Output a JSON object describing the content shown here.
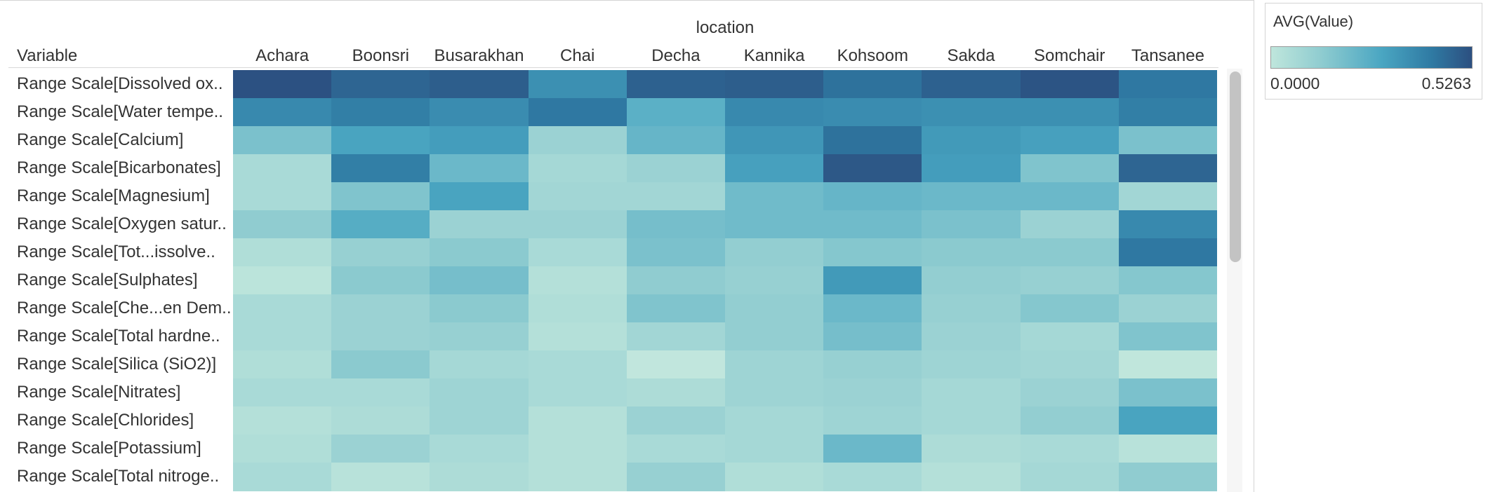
{
  "chart_data": {
    "type": "heatmap",
    "title": "",
    "column_group_title": "location",
    "row_header_title": "Variable",
    "x": [
      "Achara",
      "Boonsri",
      "Busarakhan",
      "Chai",
      "Decha",
      "Kannika",
      "Kohsoom",
      "Sakda",
      "Somchair",
      "Tansanee"
    ],
    "y": [
      "Range Scale[Dissolved ox..",
      "Range Scale[Water tempe..",
      "Range Scale[Calcium]",
      "Range Scale[Bicarbonates]",
      "Range Scale[Magnesium]",
      "Range Scale[Oxygen satur..",
      "Range Scale[Tot...issolve..",
      "Range Scale[Sulphates]",
      "Range Scale[Che...en Dem..",
      "Range Scale[Total hardne..",
      "Range Scale[Silica (SiO2)]",
      "Range Scale[Nitrates]",
      "Range Scale[Chlorides]",
      "Range Scale[Potassium]",
      "Range Scale[Total nitroge.."
    ],
    "values": [
      [
        0.52,
        0.46,
        0.48,
        0.33,
        0.47,
        0.48,
        0.42,
        0.47,
        0.51,
        0.4
      ],
      [
        0.35,
        0.38,
        0.34,
        0.4,
        0.23,
        0.35,
        0.34,
        0.33,
        0.33,
        0.38
      ],
      [
        0.17,
        0.27,
        0.29,
        0.1,
        0.21,
        0.31,
        0.42,
        0.3,
        0.28,
        0.17
      ],
      [
        0.06,
        0.38,
        0.2,
        0.07,
        0.1,
        0.28,
        0.5,
        0.29,
        0.16,
        0.46
      ],
      [
        0.06,
        0.16,
        0.27,
        0.08,
        0.08,
        0.19,
        0.21,
        0.2,
        0.2,
        0.08
      ],
      [
        0.13,
        0.24,
        0.1,
        0.1,
        0.18,
        0.19,
        0.19,
        0.17,
        0.1,
        0.35
      ],
      [
        0.04,
        0.11,
        0.14,
        0.06,
        0.17,
        0.12,
        0.15,
        0.14,
        0.14,
        0.4
      ],
      [
        0.01,
        0.14,
        0.18,
        0.03,
        0.13,
        0.11,
        0.3,
        0.12,
        0.11,
        0.15
      ],
      [
        0.06,
        0.1,
        0.14,
        0.04,
        0.16,
        0.12,
        0.2,
        0.11,
        0.15,
        0.1
      ],
      [
        0.06,
        0.1,
        0.11,
        0.03,
        0.08,
        0.12,
        0.18,
        0.1,
        0.07,
        0.16
      ],
      [
        0.04,
        0.14,
        0.07,
        0.06,
        -0.02,
        0.09,
        0.11,
        0.09,
        0.08,
        -0.01
      ],
      [
        0.06,
        0.06,
        0.09,
        0.06,
        0.05,
        0.09,
        0.1,
        0.07,
        0.1,
        0.17
      ],
      [
        0.03,
        0.05,
        0.09,
        0.03,
        0.1,
        0.07,
        0.09,
        0.07,
        0.12,
        0.27
      ],
      [
        0.04,
        0.1,
        0.06,
        0.03,
        0.06,
        0.07,
        0.2,
        0.05,
        0.06,
        0.02
      ],
      [
        0.06,
        0.02,
        0.05,
        0.03,
        0.11,
        0.04,
        0.06,
        0.03,
        0.07,
        0.13
      ]
    ],
    "color_scale": {
      "title": "AVG(Value)",
      "min_label": "0.0000",
      "max_label": "0.5263",
      "min": 0.0,
      "max": 0.5263,
      "colors": [
        "#bfe6dc",
        "#8fccd0",
        "#4aa6c2",
        "#2f7aa3",
        "#2c4f80"
      ]
    },
    "legend_position": "top-right",
    "grid": false
  }
}
